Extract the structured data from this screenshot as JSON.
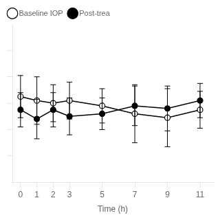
{
  "chart_data": {
    "type": "line",
    "x": [
      0,
      1,
      2,
      3,
      5,
      7,
      9,
      11
    ],
    "series": [
      {
        "name": "Baseline IOP",
        "color": "#000000",
        "marker": "open_circle",
        "line_style": "solid",
        "values": [
          20.5,
          20.2,
          20.0,
          20.2,
          19.8,
          19.2,
          18.9,
          19.5
        ],
        "errors": [
          1.6,
          1.8,
          1.4,
          1.4,
          1.3,
          2.2,
          2.2,
          1.4
        ]
      },
      {
        "name": "Post-trea",
        "color": "#000000",
        "marker": "circle",
        "line_style": "solid",
        "values": [
          19.5,
          18.8,
          19.5,
          19.0,
          19.2,
          19.8,
          19.6,
          20.2
        ],
        "errors": [
          1.3,
          1.5,
          1.3,
          1.4,
          1.2,
          1.5,
          1.7,
          1.3
        ]
      }
    ],
    "xlabel": "Time (h)",
    "xlim": [
      -0.5,
      11.8
    ],
    "xticks": [
      0,
      1,
      2,
      3,
      5,
      7,
      9,
      11
    ],
    "ylim": [
      14,
      26
    ],
    "yticks": [
      16,
      18,
      20,
      22,
      24
    ],
    "tick_labels": "x",
    "grid": false,
    "legend": "upper left"
  }
}
